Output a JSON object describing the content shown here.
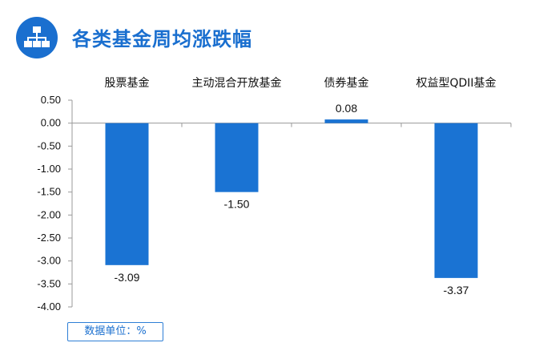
{
  "header": {
    "title": "各类基金周均涨跌幅",
    "icon": "hierarchy-icon"
  },
  "unit_label": "数据单位：%",
  "colors": {
    "bar": "#1a73d3",
    "accent": "#1a6fcf",
    "axis": "#9a9a9a",
    "text": "#111111"
  },
  "chart_data": {
    "type": "bar",
    "title": "各类基金周均涨跌幅",
    "categories": [
      "股票基金",
      "主动混合开放基金",
      "债券基金",
      "权益型QDII基金"
    ],
    "values": [
      -3.09,
      -1.5,
      0.08,
      -3.37
    ],
    "data_labels": [
      "-3.09",
      "-1.50",
      "0.08",
      "-3.37"
    ],
    "ylim": [
      -4.0,
      0.5
    ],
    "yticks": [
      "0.50",
      "0.00",
      "-0.50",
      "-1.00",
      "-1.50",
      "-2.00",
      "-2.50",
      "-3.00",
      "-3.50",
      "-4.00"
    ],
    "ytick_values": [
      0.5,
      0.0,
      -0.5,
      -1.0,
      -1.5,
      -2.0,
      -2.5,
      -3.0,
      -3.5,
      -4.0
    ],
    "category_labels_position": "top",
    "grid": false,
    "legend": "none",
    "unit": "%"
  }
}
